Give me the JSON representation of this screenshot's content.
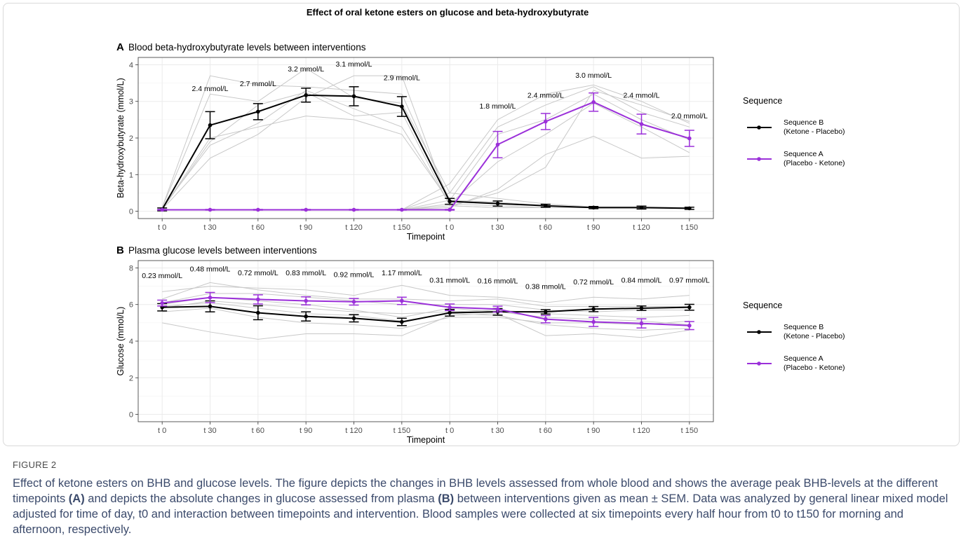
{
  "figure": {
    "title": "Effect of oral ketone esters on glucose and beta-hydroxybutyrate",
    "caption_label": "FIGURE 2",
    "caption_part1": "Effect of ketone esters on BHB and glucose levels. The figure depicts the changes in BHB levels assessed from whole blood and shows the average peak BHB-levels at the different timepoints ",
    "caption_ref_a": "(A)",
    "caption_part2": " and depicts the absolute changes in glucose assessed from plasma ",
    "caption_ref_b": "(B)",
    "caption_part3": " between interventions given as mean ± SEM. Data was analyzed by general linear mixed model adjusted for time of day, t0 and interaction between timepoints and intervention. Blood samples were collected at six timepoints every half hour from t0 to t150 for morning and afternoon, respectively."
  },
  "colors": {
    "sequence_b": "#000000",
    "sequence_a": "#9b30d9",
    "individual": "#c8c8c8",
    "grid": "#ebebeb",
    "panel_border": "#333333"
  },
  "chart_data": [
    {
      "type": "line",
      "panel": "A",
      "title": "Blood beta-hydroxybutyrate levels between interventions",
      "xlabel": "Timepoint",
      "ylabel": "Beta-hydroxybutyrate (mmol/L)",
      "ylim": [
        0,
        4
      ],
      "yticks": [
        0,
        1,
        2,
        3,
        4
      ],
      "categories": [
        "t 0",
        "t 30",
        "t 60",
        "t 90",
        "t 120",
        "t 150",
        "t 0",
        "t 30",
        "t 60",
        "t 90",
        "t 120",
        "t 150"
      ],
      "legend_title": "Sequence",
      "legend_position": "right",
      "series": [
        {
          "name": "Sequence B\n(Ketone - Placebo)",
          "color": "#000000",
          "values": [
            0.05,
            2.35,
            2.72,
            3.17,
            3.14,
            2.86,
            0.27,
            0.21,
            0.15,
            0.1,
            0.1,
            0.08
          ],
          "sem": [
            0.04,
            0.37,
            0.22,
            0.19,
            0.26,
            0.27,
            0.08,
            0.07,
            0.04,
            0.03,
            0.04,
            0.03
          ]
        },
        {
          "name": "Sequence A\n(Placebo - Ketone)",
          "color": "#9b30d9",
          "values": [
            0.04,
            0.04,
            0.04,
            0.04,
            0.04,
            0.04,
            0.04,
            1.82,
            2.45,
            2.98,
            2.38,
            1.99
          ],
          "sem": [
            0.01,
            0.01,
            0.01,
            0.01,
            0.01,
            0.01,
            0.01,
            0.36,
            0.22,
            0.25,
            0.27,
            0.22
          ]
        }
      ],
      "individual": [
        [
          0.1,
          3.7,
          3.45,
          3.4,
          3.3,
          3.2,
          0.3,
          0.25,
          0.15,
          0.1,
          0.1,
          0.08
        ],
        [
          0.1,
          3.2,
          3.0,
          3.9,
          3.1,
          2.95,
          0.5,
          0.35,
          0.2,
          0.12,
          0.12,
          0.1
        ],
        [
          0.05,
          2.0,
          2.3,
          2.6,
          2.5,
          2.1,
          0.25,
          0.2,
          0.15,
          0.1,
          0.1,
          0.08
        ],
        [
          0.05,
          1.45,
          2.1,
          3.1,
          3.7,
          3.7,
          0.15,
          0.1,
          0.1,
          0.1,
          0.1,
          0.08
        ],
        [
          0.1,
          1.8,
          2.4,
          3.3,
          2.8,
          2.3,
          0.2,
          0.15,
          0.1,
          0.1,
          0.1,
          0.08
        ],
        [
          0.05,
          1.9,
          2.9,
          3.25,
          2.6,
          2.7,
          0.15,
          0.1,
          0.1,
          0.1,
          0.1,
          0.08
        ],
        [
          0.04,
          0.04,
          0.04,
          0.04,
          0.04,
          0.04,
          0.75,
          2.5,
          3.2,
          3.45,
          3.0,
          2.4
        ],
        [
          0.04,
          0.04,
          0.04,
          0.04,
          0.04,
          0.04,
          0.5,
          2.3,
          2.9,
          3.4,
          2.7,
          2.3
        ],
        [
          0.04,
          0.04,
          0.04,
          0.04,
          0.04,
          0.04,
          0.3,
          2.1,
          2.5,
          3.2,
          2.5,
          1.95
        ],
        [
          0.04,
          0.04,
          0.04,
          0.04,
          0.04,
          0.04,
          0.2,
          1.35,
          2.1,
          2.95,
          2.3,
          1.6
        ],
        [
          0.04,
          0.04,
          0.04,
          0.04,
          0.04,
          0.04,
          0.1,
          0.6,
          1.55,
          2.05,
          1.45,
          1.5
        ],
        [
          0.04,
          0.04,
          0.04,
          0.04,
          0.04,
          0.04,
          0.15,
          0.5,
          1.2,
          3.3,
          2.9,
          2.45
        ]
      ],
      "annotations": [
        {
          "text": "2.4 mmol/L",
          "x": 1,
          "y": 3.28
        },
        {
          "text": "2.7 mmol/L",
          "x": 2,
          "y": 3.42
        },
        {
          "text": "3.2 mmol/L",
          "x": 3,
          "y": 3.82
        },
        {
          "text": "3.1 mmol/L",
          "x": 4,
          "y": 3.95
        },
        {
          "text": "2.9 mmol/L",
          "x": 5,
          "y": 3.58
        },
        {
          "text": "1.8 mmol/L",
          "x": 7,
          "y": 2.8
        },
        {
          "text": "2.4 mmol/L",
          "x": 8,
          "y": 3.1
        },
        {
          "text": "3.0 mmol/L",
          "x": 9,
          "y": 3.65
        },
        {
          "text": "2.4 mmol/L",
          "x": 10,
          "y": 3.1
        },
        {
          "text": "2.0 mmol/L",
          "x": 11,
          "y": 2.54
        }
      ]
    },
    {
      "type": "line",
      "panel": "B",
      "title": "Plasma glucose levels between interventions",
      "xlabel": "Timepoint",
      "ylabel": "Glucose (mmol/L)",
      "ylim": [
        0,
        8
      ],
      "yticks": [
        0,
        2,
        4,
        6,
        8
      ],
      "categories": [
        "t 0",
        "t 30",
        "t 60",
        "t 90",
        "t 120",
        "t 150",
        "t 0",
        "t 30",
        "t 60",
        "t 90",
        "t 120",
        "t 150"
      ],
      "legend_title": "Sequence",
      "legend_position": "right",
      "series": [
        {
          "name": "Sequence B\n(Ketone - Placebo)",
          "color": "#000000",
          "values": [
            5.85,
            5.9,
            5.55,
            5.35,
            5.25,
            5.05,
            5.55,
            5.6,
            5.6,
            5.75,
            5.8,
            5.85
          ],
          "sem": [
            0.2,
            0.3,
            0.38,
            0.25,
            0.2,
            0.2,
            0.18,
            0.18,
            0.12,
            0.14,
            0.12,
            0.16
          ]
        },
        {
          "name": "Sequence A\n(Placebo - Ketone)",
          "color": "#9b30d9",
          "values": [
            6.08,
            6.38,
            6.28,
            6.2,
            6.15,
            6.2,
            5.85,
            5.75,
            5.2,
            5.05,
            4.97,
            4.85
          ],
          "sem": [
            0.16,
            0.28,
            0.25,
            0.22,
            0.18,
            0.2,
            0.18,
            0.16,
            0.2,
            0.25,
            0.25,
            0.22
          ]
        }
      ],
      "individual": [
        [
          6.7,
          7.0,
          6.9,
          6.8,
          6.5,
          7.05,
          6.5,
          6.4,
          6.1,
          6.4,
          6.3,
          6.5
        ],
        [
          6.3,
          7.2,
          6.8,
          6.5,
          6.3,
          6.3,
          6.2,
          6.3,
          5.9,
          5.9,
          5.9,
          5.9
        ],
        [
          6.1,
          6.6,
          6.6,
          6.4,
          6.2,
          6.0,
          6.0,
          6.0,
          5.7,
          5.6,
          5.7,
          5.7
        ],
        [
          5.8,
          6.2,
          6.0,
          5.8,
          5.6,
          5.5,
          5.6,
          5.7,
          5.5,
          5.4,
          5.3,
          5.4
        ],
        [
          5.6,
          5.8,
          5.3,
          5.0,
          4.9,
          4.7,
          5.3,
          5.3,
          5.0,
          5.0,
          4.9,
          5.1
        ],
        [
          5.0,
          4.5,
          4.1,
          4.4,
          4.4,
          4.3,
          5.4,
          5.5,
          4.3,
          4.4,
          4.2,
          4.6
        ],
        [
          6.0,
          6.4,
          6.2,
          6.0,
          5.7,
          5.3,
          5.8,
          5.6,
          5.3,
          5.2,
          5.1,
          4.9
        ],
        [
          5.9,
          6.1,
          5.8,
          5.5,
          5.4,
          5.1,
          5.5,
          5.4,
          4.9,
          4.7,
          4.6,
          4.7
        ]
      ],
      "annotations": [
        {
          "text": "0.23 mmol/L",
          "x": 0,
          "y": 7.45
        },
        {
          "text": "0.48 mmol/L",
          "x": 1,
          "y": 7.8
        },
        {
          "text": "0.72 mmol/L",
          "x": 2,
          "y": 7.6
        },
        {
          "text": "0.83 mmol/L",
          "x": 3,
          "y": 7.6
        },
        {
          "text": "0.92 mmol/L",
          "x": 4,
          "y": 7.5
        },
        {
          "text": "1.17 mmol/L",
          "x": 5,
          "y": 7.6
        },
        {
          "text": "0.31 mmol/L",
          "x": 6,
          "y": 7.2
        },
        {
          "text": "0.16 mmol/L",
          "x": 7,
          "y": 7.15
        },
        {
          "text": "0.38 mmol/L",
          "x": 8,
          "y": 6.85
        },
        {
          "text": "0.72 mmol/L",
          "x": 9,
          "y": 7.1
        },
        {
          "text": "0.84 mmol/L",
          "x": 10,
          "y": 7.2
        },
        {
          "text": "0.97 mmol/L",
          "x": 11,
          "y": 7.2
        }
      ]
    }
  ]
}
